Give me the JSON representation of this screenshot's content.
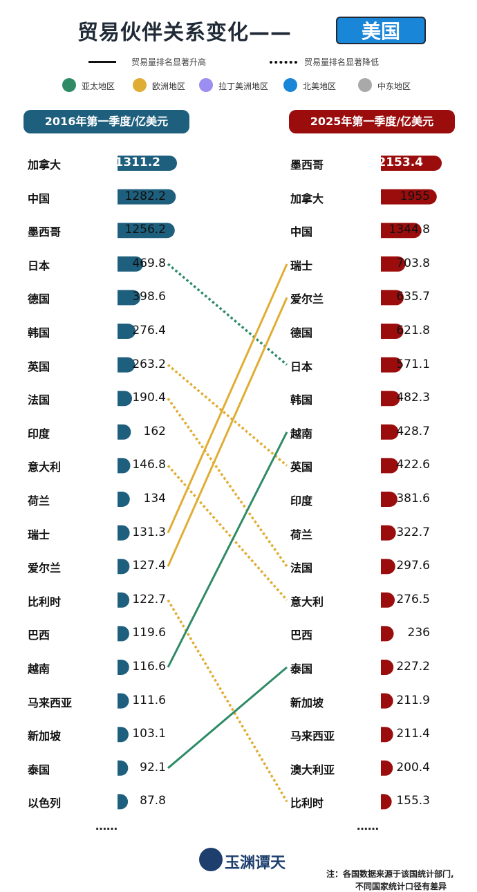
{
  "title": {
    "main": "贸易伙伴关系变化——",
    "badge": "美国"
  },
  "key": {
    "rise": "贸易量排名显著升高",
    "fall": "贸易量排名显著降低"
  },
  "legend": [
    {
      "label": "亚太地区",
      "color": "#2e8b66"
    },
    {
      "label": "欧洲地区",
      "color": "#e0ad34"
    },
    {
      "label": "拉丁美洲地区",
      "color": "#9b8ef0"
    },
    {
      "label": "北美地区",
      "color": "#1a86d8"
    },
    {
      "label": "中东地区",
      "color": "#a9a9a9"
    }
  ],
  "chart_data": {
    "type": "bar",
    "left": {
      "header": "2016年第一季度/亿美元",
      "color": "#1e5f7e",
      "items": [
        {
          "country": "加拿大",
          "value": 1311.2
        },
        {
          "country": "中国",
          "value": 1282.2
        },
        {
          "country": "墨西哥",
          "value": 1256.2
        },
        {
          "country": "日本",
          "value": 469.8
        },
        {
          "country": "德国",
          "value": 398.6
        },
        {
          "country": "韩国",
          "value": 276.4
        },
        {
          "country": "英国",
          "value": 263.2
        },
        {
          "country": "法国",
          "value": 190.4
        },
        {
          "country": "印度",
          "value": 162
        },
        {
          "country": "意大利",
          "value": 146.8
        },
        {
          "country": "荷兰",
          "value": 134
        },
        {
          "country": "瑞士",
          "value": 131.3
        },
        {
          "country": "爱尔兰",
          "value": 127.4
        },
        {
          "country": "比利时",
          "value": 122.7
        },
        {
          "country": "巴西",
          "value": 119.6
        },
        {
          "country": "越南",
          "value": 116.6
        },
        {
          "country": "马来西亚",
          "value": 111.6
        },
        {
          "country": "新加坡",
          "value": 103.1
        },
        {
          "country": "泰国",
          "value": 92.1
        },
        {
          "country": "以色列",
          "value": 87.8
        }
      ],
      "more": "……"
    },
    "right": {
      "header": "2025年第一季度/亿美元",
      "color": "#9b0d0d",
      "items": [
        {
          "country": "墨西哥",
          "value": 2153.4
        },
        {
          "country": "加拿大",
          "value": 1955
        },
        {
          "country": "中国",
          "value": 1344.8
        },
        {
          "country": "瑞士",
          "value": 703.8
        },
        {
          "country": "爱尔兰",
          "value": 635.7
        },
        {
          "country": "德国",
          "value": 621.8
        },
        {
          "country": "日本",
          "value": 571.1
        },
        {
          "country": "韩国",
          "value": 482.3
        },
        {
          "country": "越南",
          "value": 428.7
        },
        {
          "country": "英国",
          "value": 422.6
        },
        {
          "country": "印度",
          "value": 381.6
        },
        {
          "country": "荷兰",
          "value": 322.7
        },
        {
          "country": "法国",
          "value": 297.6
        },
        {
          "country": "意大利",
          "value": 276.5
        },
        {
          "country": "巴西",
          "value": 236
        },
        {
          "country": "泰国",
          "value": 227.2
        },
        {
          "country": "新加坡",
          "value": 211.9
        },
        {
          "country": "马来西亚",
          "value": 211.4
        },
        {
          "country": "澳大利亚",
          "value": 200.4
        },
        {
          "country": "比利时",
          "value": 155.3
        }
      ],
      "more": "……"
    },
    "connectors": [
      {
        "from": 3,
        "to": 6,
        "style": "dotted",
        "color": "#2e8b66"
      },
      {
        "from": 6,
        "to": 9,
        "style": "dotted",
        "color": "#e0ad34"
      },
      {
        "from": 7,
        "to": 12,
        "style": "dotted",
        "color": "#e0ad34"
      },
      {
        "from": 9,
        "to": 13,
        "style": "dotted",
        "color": "#e0ad34"
      },
      {
        "from": 13,
        "to": 19,
        "style": "dotted",
        "color": "#e0ad34"
      },
      {
        "from": 11,
        "to": 3,
        "style": "solid",
        "color": "#e0ad34"
      },
      {
        "from": 12,
        "to": 4,
        "style": "solid",
        "color": "#e0ad34"
      },
      {
        "from": 15,
        "to": 8,
        "style": "solid",
        "color": "#2e8b66"
      },
      {
        "from": 18,
        "to": 15,
        "style": "solid",
        "color": "#2e8b66"
      }
    ]
  },
  "footer": {
    "logo": "玉渊谭天",
    "note1": "注：各国数据来源于该国统计部门,",
    "note2": "不同国家统计口径有差异"
  }
}
